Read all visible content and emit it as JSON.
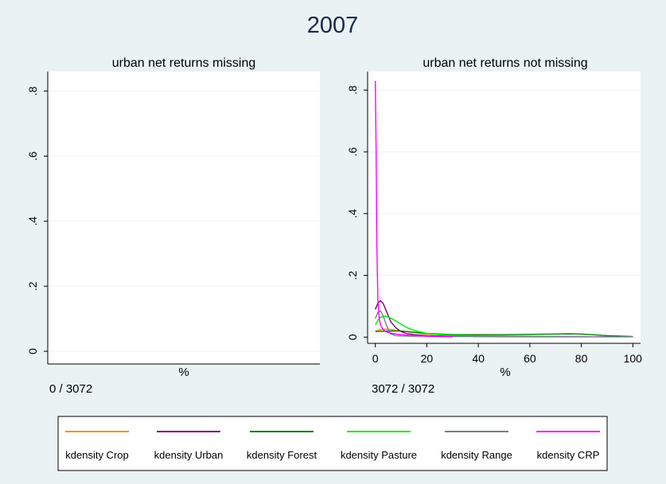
{
  "figure_title": "2007",
  "colors": {
    "background": "#eaf2f3",
    "plot_bg": "#ffffff",
    "Crop": "#ff8c00",
    "Urban": "#800080",
    "Forest": "#008000",
    "Pasture": "#00ee00",
    "Range": "#708090",
    "CRP": "#ff00ff"
  },
  "chart_data": [
    {
      "type": "line",
      "title": "urban net returns missing",
      "xlabel": "%",
      "ylabel": "",
      "note": "0 / 3072",
      "xlim": [
        0,
        1
      ],
      "ylim": [
        0,
        0.86
      ],
      "yticks": [
        0,
        0.2,
        0.4,
        0.6,
        0.8
      ],
      "ytick_labels": [
        "0",
        ".2",
        ".4",
        ".6",
        ".8"
      ],
      "xticks": [],
      "xtick_labels": [],
      "grid": true,
      "series": []
    },
    {
      "type": "line",
      "title": "urban net returns not missing",
      "xlabel": "%",
      "ylabel": "",
      "note": "3072 / 3072",
      "xlim": [
        -3,
        103
      ],
      "ylim": [
        -0.02,
        0.86
      ],
      "yticks": [
        0,
        0.2,
        0.4,
        0.6,
        0.8
      ],
      "ytick_labels": [
        "0",
        ".2",
        ".4",
        ".6",
        ".8"
      ],
      "xticks": [
        0,
        20,
        40,
        60,
        80,
        100
      ],
      "xtick_labels": [
        "0",
        "20",
        "40",
        "60",
        "80",
        "100"
      ],
      "grid": true,
      "series": [
        {
          "name": "kdensity Crop",
          "color": "#ff8c00",
          "x": [
            0,
            2,
            4,
            6,
            8,
            10,
            15,
            20,
            30,
            40,
            50,
            60,
            70
          ],
          "y": [
            0.02,
            0.024,
            0.026,
            0.025,
            0.022,
            0.02,
            0.015,
            0.01,
            0.007,
            0.005,
            0.004,
            0.003,
            0.002
          ]
        },
        {
          "name": "kdensity Urban",
          "color": "#800080",
          "x": [
            0,
            1,
            2,
            3,
            4,
            5,
            6,
            8,
            10,
            12,
            15,
            20,
            30,
            40,
            60,
            80,
            100
          ],
          "y": [
            0.09,
            0.11,
            0.118,
            0.11,
            0.09,
            0.07,
            0.05,
            0.03,
            0.018,
            0.012,
            0.008,
            0.005,
            0.003,
            0.002,
            0.002,
            0.001,
            0.001
          ]
        },
        {
          "name": "kdensity Forest",
          "color": "#008000",
          "x": [
            0,
            5,
            10,
            20,
            30,
            40,
            50,
            60,
            70,
            75,
            80,
            90,
            100
          ],
          "y": [
            0.018,
            0.02,
            0.02,
            0.012,
            0.008,
            0.008,
            0.008,
            0.009,
            0.01,
            0.011,
            0.01,
            0.005,
            0.002
          ]
        },
        {
          "name": "kdensity Pasture",
          "color": "#00ee00",
          "x": [
            0,
            1,
            2,
            4,
            6,
            8,
            10,
            12,
            15,
            20,
            25,
            30,
            40,
            50,
            60,
            70
          ],
          "y": [
            0.04,
            0.055,
            0.065,
            0.068,
            0.062,
            0.052,
            0.042,
            0.032,
            0.022,
            0.012,
            0.008,
            0.006,
            0.004,
            0.003,
            0.002,
            0.002
          ]
        },
        {
          "name": "kdensity Range",
          "color": "#708090",
          "x": [
            0,
            1,
            2,
            3,
            4,
            5,
            6,
            8,
            10,
            15,
            20,
            30,
            40,
            60,
            80,
            100
          ],
          "y": [
            0.06,
            0.08,
            0.085,
            0.07,
            0.045,
            0.025,
            0.01,
            0.005,
            0.004,
            0.003,
            0.003,
            0.002,
            0.002,
            0.001,
            0.001,
            0.001
          ]
        },
        {
          "name": "kdensity CRP",
          "color": "#ff00ff",
          "x": [
            0,
            0.3,
            0.6,
            1,
            1.5,
            2,
            3,
            4,
            6,
            8,
            10,
            15,
            20,
            25,
            30
          ],
          "y": [
            0.83,
            0.6,
            0.3,
            0.12,
            0.06,
            0.04,
            0.025,
            0.018,
            0.013,
            0.01,
            0.008,
            0.005,
            0.003,
            0.002,
            0.001
          ]
        }
      ]
    }
  ],
  "legend": {
    "placement": "bottom",
    "items": [
      {
        "label": "kdensity Crop",
        "color": "#ff8c00"
      },
      {
        "label": "kdensity Urban",
        "color": "#800080"
      },
      {
        "label": "kdensity Forest",
        "color": "#008000"
      },
      {
        "label": "kdensity Pasture",
        "color": "#00ee00"
      },
      {
        "label": "kdensity Range",
        "color": "#708090"
      },
      {
        "label": "kdensity CRP",
        "color": "#ff00ff"
      }
    ]
  }
}
